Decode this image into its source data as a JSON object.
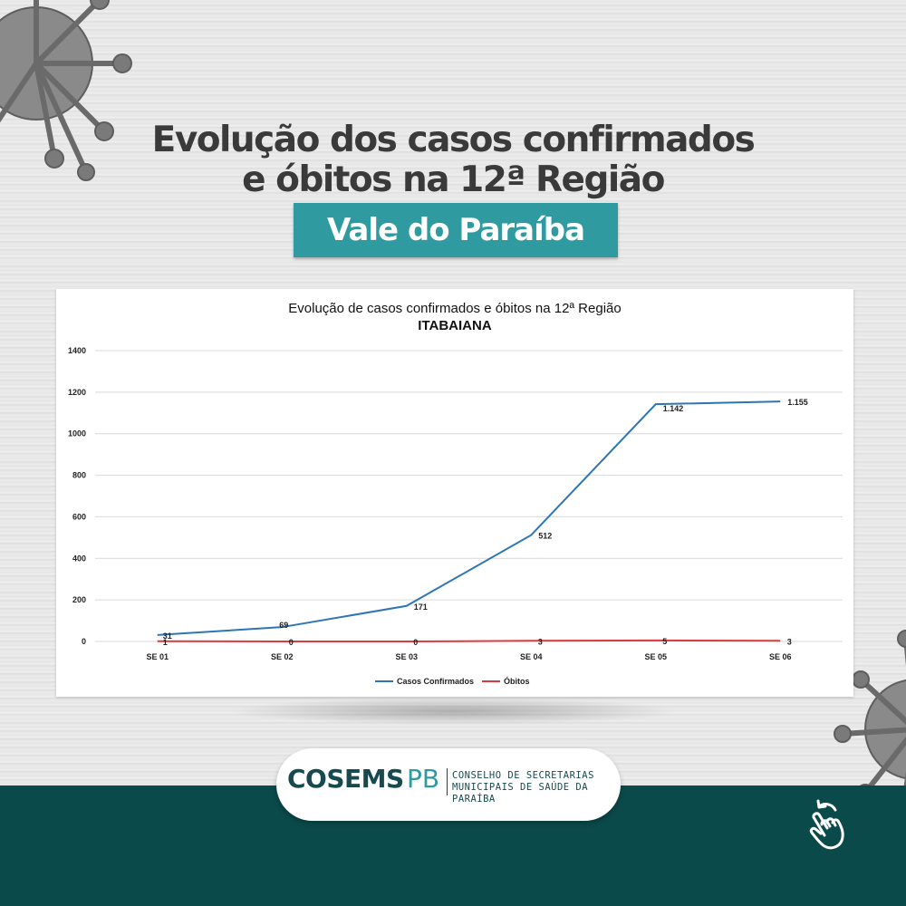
{
  "headline": {
    "line1": "Evolução dos casos confirmados",
    "line2": "e óbitos na 12ª Região"
  },
  "badge": "Vale do Paraíba",
  "chart_data": {
    "type": "line",
    "title": "Evolução de casos confirmados e óbitos  na 12ª Região",
    "subtitle": "ITABAIANA",
    "categories": [
      "SE 01",
      "SE 02",
      "SE 03",
      "SE 04",
      "SE 05",
      "SE 06"
    ],
    "ylim": [
      0,
      1400
    ],
    "yticks": [
      "0",
      "200",
      "400",
      "600",
      "800",
      "1000",
      "1200",
      "1400"
    ],
    "grid": true,
    "legend": "bottom",
    "series": [
      {
        "name": "Casos Confirmados",
        "color": "#2e75b6",
        "values": [
          31,
          69,
          171,
          512,
          1142,
          1155
        ],
        "labels": [
          "31",
          "69",
          "171",
          "512",
          "1.142",
          "1.155"
        ]
      },
      {
        "name": "Óbitos",
        "color": "#e0383e",
        "values": [
          1,
          0,
          0,
          3,
          5,
          3
        ],
        "labels": [
          "1",
          "0",
          "0",
          "3",
          "5",
          "3"
        ]
      }
    ]
  },
  "logo": {
    "word": "COSEMS",
    "suffix": "PB",
    "tagline1": "CONSELHO DE SECRETARIAS",
    "tagline2": "MUNICIPAIS DE SAÚDE DA PARAÍBA"
  },
  "icons": {
    "virus": "virus-icon",
    "swipe": "swipe-hand-icon"
  }
}
